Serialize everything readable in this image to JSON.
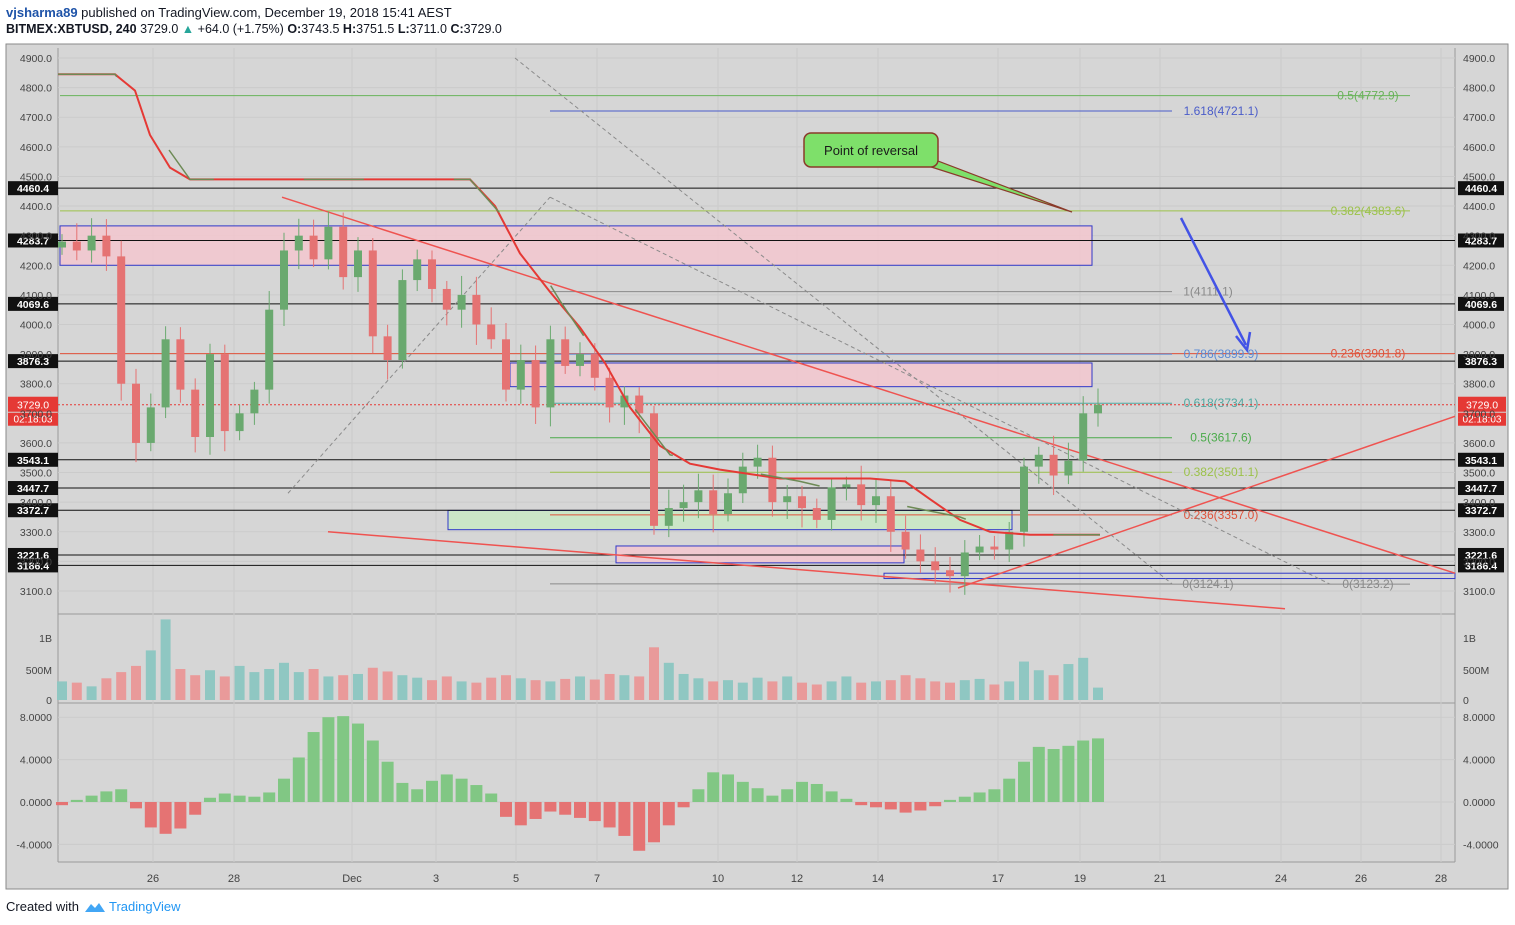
{
  "header": {
    "user": "vjsharma89",
    "published": " published on TradingView.com, December 19, 2018 15:41 AEST",
    "symbol": "BITMEX:XBTUSD, 240",
    "last": "3729.0",
    "change_arrow": "▲",
    "change": "+64.0 (+1.75%)",
    "o_label": "O:",
    "o": "3743.5",
    "h_label": "H:",
    "h": "3751.5",
    "l_label": "L:",
    "l": "3711.0",
    "c_label": "C:",
    "c": "3729.0"
  },
  "footer": {
    "created": "Created with",
    "brand": "TradingView"
  },
  "colors": {
    "up": "#6aa96f",
    "down": "#e57373",
    "ma_red": "#e53935",
    "ma_green": "#6d8a55",
    "trend": "#ef5350",
    "zone_fill": "#f3c7cf",
    "zone_green_fill": "#c9e9c4",
    "box": "#3038c8",
    "fib_green": "#7dc36b",
    "fib_blue": "#4a5cc9",
    "annotation_fill": "#7ee06a",
    "arrow": "#4353e6"
  },
  "chart_data": {
    "type": "candlestick",
    "ylim": [
      3020,
      4960
    ],
    "y_ticks": [
      "4900.0",
      "4800.0",
      "4700.0",
      "4600.0",
      "4500.0",
      "4400.0",
      "4300.0",
      "4200.0",
      "4100.0",
      "4000.0",
      "3900.0",
      "3800.0",
      "3700.0",
      "3600.0",
      "3500.0",
      "3400.0",
      "3300.0",
      "3200.0",
      "3100.0"
    ],
    "x_ticks": [
      "26",
      "28",
      "Dec",
      "3",
      "5",
      "7",
      "10",
      "12",
      "14",
      "17",
      "19",
      "21",
      "24",
      "26",
      "28"
    ],
    "volume_ticks": [
      "1B",
      "500M",
      "0"
    ],
    "oscillator_ticks": [
      "8.0000",
      "4.0000",
      "0.0000",
      "-4.0000"
    ],
    "horizontal_levels": [
      {
        "label": "4460.4",
        "value": 4460.4
      },
      {
        "label": "4283.7",
        "value": 4283.7
      },
      {
        "label": "4069.6",
        "value": 4069.6
      },
      {
        "label": "3876.3",
        "value": 3876.3
      },
      {
        "label": "3543.1",
        "value": 3543.1
      },
      {
        "label": "3447.7",
        "value": 3447.7
      },
      {
        "label": "3372.7",
        "value": 3372.7
      },
      {
        "label": "3221.6",
        "value": 3221.6
      },
      {
        "label": "3186.4",
        "value": 3186.4
      }
    ],
    "price_label": {
      "value": "3729.0",
      "countdown": "02:18:03"
    },
    "fib_levels": [
      {
        "label": "0.5(4772.9)",
        "value": 4772.9
      },
      {
        "label": "0.382(4383.6)",
        "value": 4383.6
      },
      {
        "label": "0.236(3901.8)",
        "value": 3901.8
      },
      {
        "label": "0(3123.2)",
        "value": 3123.2
      },
      {
        "label": "1.618(4721.1)",
        "value": 4721.1
      },
      {
        "label": "1(4111.1)",
        "value": 4111.1
      },
      {
        "label": "0.786(3899.9)",
        "value": 3899.9
      },
      {
        "label": "0.618(3734.1)",
        "value": 3734.1
      },
      {
        "label": "0.5(3617.6)",
        "value": 3617.6
      },
      {
        "label": "0.382(3501.1)",
        "value": 3501.1
      },
      {
        "label": "0.236(3357.0)",
        "value": 3357.0
      },
      {
        "label": "0(3124.1)",
        "value": 3124.1
      }
    ],
    "annotation": "Point of reversal",
    "close_path": [
      4280,
      4250,
      4300,
      4230,
      3800,
      3600,
      3720,
      3950,
      3780,
      3620,
      3900,
      3640,
      3700,
      3780,
      4050,
      4250,
      4300,
      4220,
      4330,
      4160,
      4250,
      3960,
      3880,
      4150,
      4220,
      4120,
      4050,
      4100,
      4000,
      3950,
      3780,
      3880,
      3720,
      3950,
      3860,
      3900,
      3820,
      3720,
      3760,
      3700,
      3320,
      3380,
      3400,
      3440,
      3360,
      3430,
      3520,
      3550,
      3400,
      3420,
      3380,
      3340,
      3450,
      3460,
      3390,
      3420,
      3300,
      3240,
      3200,
      3170,
      3150,
      3230,
      3250,
      3240,
      3300,
      3520,
      3560,
      3490,
      3540,
      3700,
      3729
    ],
    "volume": [
      0.3,
      0.28,
      0.22,
      0.35,
      0.45,
      0.55,
      0.8,
      1.3,
      0.5,
      0.4,
      0.48,
      0.38,
      0.55,
      0.45,
      0.5,
      0.6,
      0.45,
      0.5,
      0.38,
      0.4,
      0.42,
      0.52,
      0.46,
      0.4,
      0.36,
      0.32,
      0.38,
      0.3,
      0.28,
      0.36,
      0.4,
      0.35,
      0.32,
      0.3,
      0.34,
      0.38,
      0.33,
      0.42,
      0.4,
      0.38,
      0.85,
      0.6,
      0.42,
      0.35,
      0.3,
      0.32,
      0.28,
      0.36,
      0.3,
      0.38,
      0.28,
      0.25,
      0.3,
      0.38,
      0.28,
      0.3,
      0.32,
      0.4,
      0.35,
      0.3,
      0.28,
      0.32,
      0.34,
      0.25,
      0.3,
      0.62,
      0.48,
      0.4,
      0.58,
      0.68,
      0.2
    ],
    "oscillator": [
      -0.3,
      0.2,
      0.6,
      1.0,
      1.2,
      -0.6,
      -2.4,
      -3.0,
      -2.5,
      -1.2,
      0.4,
      0.8,
      0.6,
      0.5,
      0.9,
      2.2,
      4.2,
      6.6,
      8.0,
      8.1,
      7.4,
      5.8,
      3.8,
      1.8,
      1.2,
      2.0,
      2.6,
      2.2,
      1.6,
      0.8,
      -1.4,
      -2.2,
      -1.6,
      -0.9,
      -1.2,
      -1.5,
      -1.8,
      -2.4,
      -3.2,
      -4.6,
      -3.8,
      -2.2,
      -0.5,
      1.2,
      2.8,
      2.6,
      1.9,
      1.3,
      0.6,
      1.2,
      1.9,
      1.7,
      1.0,
      0.3,
      -0.3,
      -0.5,
      -0.7,
      -1.0,
      -0.8,
      -0.4,
      0.2,
      0.5,
      0.9,
      1.2,
      2.2,
      3.8,
      5.2,
      5.0,
      5.3,
      5.8,
      6.0
    ]
  }
}
